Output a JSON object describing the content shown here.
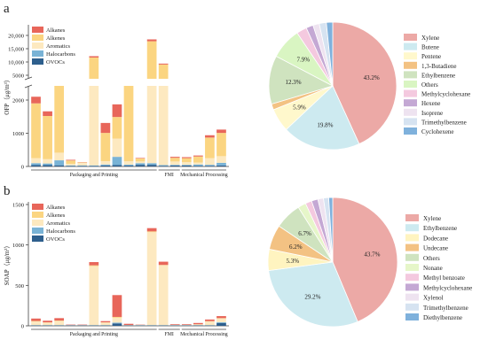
{
  "colors": {
    "alkanes": "#e8665a",
    "alkenes": "#fbd581",
    "aromatics": "#fde9c0",
    "halocarbons": "#79b3d6",
    "ovocs": "#2e5f8d"
  },
  "chart_data": [
    {
      "type": "bar",
      "panel_label": "a",
      "ylabel": "OFP（μg/m³）",
      "stack_order": [
        "OVOCs",
        "Halocarbons",
        "Aromatics",
        "Alkenes",
        "Alkanes"
      ],
      "legend": [
        "Alkanes",
        "Alkenes",
        "Aromatics",
        "Halocarbons",
        "OVOCs"
      ],
      "legend_placement": "top-left",
      "y_break": true,
      "lower_ticks": [
        "0",
        "1000",
        "2000"
      ],
      "upper_ticks": [
        "5000",
        "10,000",
        "15,000",
        "20,000"
      ],
      "groups": [
        {
          "label": "Packaging and Printing",
          "count": 11
        },
        {
          "label": "FMI",
          "count": 2
        },
        {
          "label": "Mechanical Processing",
          "count": 4
        }
      ],
      "series": [
        {
          "name": "OVOCs",
          "values": [
            40,
            40,
            35,
            15,
            15,
            15,
            30,
            40,
            25,
            50,
            50,
            20,
            30,
            30,
            20,
            20,
            30
          ]
        },
        {
          "name": "Halocarbons",
          "values": [
            60,
            50,
            150,
            15,
            15,
            15,
            30,
            250,
            30,
            50,
            50,
            20,
            20,
            20,
            40,
            30,
            80
          ]
        },
        {
          "name": "Aromatics",
          "values": [
            150,
            130,
            230,
            50,
            100,
            2850,
            100,
            550,
            100,
            50,
            3500,
            3050,
            100,
            80,
            60,
            200,
            200
          ]
        },
        {
          "name": "Alkenes",
          "values": [
            1650,
            1300,
            2850,
            100,
            1,
            8800,
            850,
            650,
            2950,
            90,
            14200,
            5950,
            110,
            120,
            180,
            620,
            700
          ]
        },
        {
          "name": "Alkanes",
          "values": [
            200,
            140,
            100,
            20,
            1,
            500,
            300,
            380,
            200,
            15,
            700,
            350,
            30,
            30,
            30,
            70,
            100
          ]
        }
      ]
    },
    {
      "type": "pie",
      "panel_label": "a",
      "labels": [
        "Xylene",
        "Butene",
        "Pentene",
        "1,3-Butadiene",
        "Ethylbenzene",
        "Others",
        "Methylcyclohexane",
        "Hexene",
        "Isoprene",
        "Trimethylbenzene",
        "Cyclohexene"
      ],
      "values": [
        43.2,
        19.8,
        5.9,
        1.5,
        12.3,
        7.9,
        2.6,
        1.8,
        1.6,
        1.8,
        1.6
      ],
      "value_labels": [
        "43.2%",
        "19.8%",
        "5.9%",
        "",
        "12.3%",
        "7.9%",
        "",
        "",
        "",
        "",
        ""
      ],
      "colors": [
        "#eca9a6",
        "#cdeaf0",
        "#fff8cc",
        "#f3c283",
        "#cfe3bf",
        "#d9f5c2",
        "#f4c9df",
        "#c4a8d4",
        "#eee3f0",
        "#d6e3f1",
        "#7fb1dc"
      ],
      "legend_placement": "right"
    },
    {
      "type": "bar",
      "panel_label": "b",
      "ylabel": "SOAP（μg/m³）",
      "stack_order": [
        "OVOCs",
        "Halocarbons",
        "Aromatics",
        "Alkenes",
        "Alkanes"
      ],
      "legend": [
        "Alkanes",
        "Alkenes",
        "Aromatics",
        "Halocarbons",
        "OVOCs"
      ],
      "legend_placement": "top-left",
      "ylim": [
        0,
        1500
      ],
      "yticks": [
        "0",
        "500",
        "1000",
        "1500"
      ],
      "groups": [
        {
          "label": "Packaging and Printing",
          "count": 11
        },
        {
          "label": "FMI",
          "count": 2
        },
        {
          "label": "Mechanical Processing",
          "count": 4
        }
      ],
      "series": [
        {
          "name": "OVOCs",
          "values": [
            5,
            5,
            5,
            5,
            5,
            5,
            5,
            30,
            5,
            5,
            5,
            5,
            5,
            5,
            5,
            5,
            35
          ]
        },
        {
          "name": "Halocarbons",
          "values": [
            3,
            3,
            3,
            3,
            3,
            3,
            3,
            10,
            3,
            3,
            3,
            3,
            3,
            3,
            3,
            3,
            10
          ]
        },
        {
          "name": "Aromatics",
          "values": [
            47,
            32,
            52,
            2,
            2,
            730,
            32,
            60,
            2,
            5,
            1150,
            740,
            5,
            5,
            10,
            45,
            45
          ]
        },
        {
          "name": "Alkenes",
          "values": [
            5,
            3,
            5,
            0,
            0,
            10,
            3,
            10,
            0,
            0,
            10,
            5,
            0,
            0,
            2,
            5,
            5
          ]
        },
        {
          "name": "Alkanes",
          "values": [
            30,
            20,
            30,
            5,
            5,
            40,
            15,
            270,
            15,
            2,
            40,
            40,
            8,
            8,
            15,
            20,
            25
          ]
        }
      ]
    },
    {
      "type": "pie",
      "panel_label": "b",
      "labels": [
        "Xylene",
        "Ethylbenzene",
        "Dodecane",
        "Undecane",
        "Others",
        "Nonane",
        "Methyl benzoate",
        "Methylcyclohexane",
        "Xylenol",
        "Trimethylbenzene",
        "Diethylbenzene"
      ],
      "values": [
        43.7,
        29.2,
        5.3,
        6.2,
        6.7,
        2.0,
        1.6,
        1.6,
        1.4,
        1.3,
        1.0
      ],
      "value_labels": [
        "43.7%",
        "29.2%",
        "5.3%",
        "6.2%",
        "6.7%",
        "",
        "",
        "",
        "",
        "",
        ""
      ],
      "colors": [
        "#eca9a6",
        "#cdeaf0",
        "#fff4c0",
        "#f3c283",
        "#cfe3bf",
        "#e6f6c9",
        "#f4c9df",
        "#c4a8d4",
        "#eee3f0",
        "#d6e3f1",
        "#7fb1dc"
      ],
      "legend_placement": "right"
    }
  ]
}
